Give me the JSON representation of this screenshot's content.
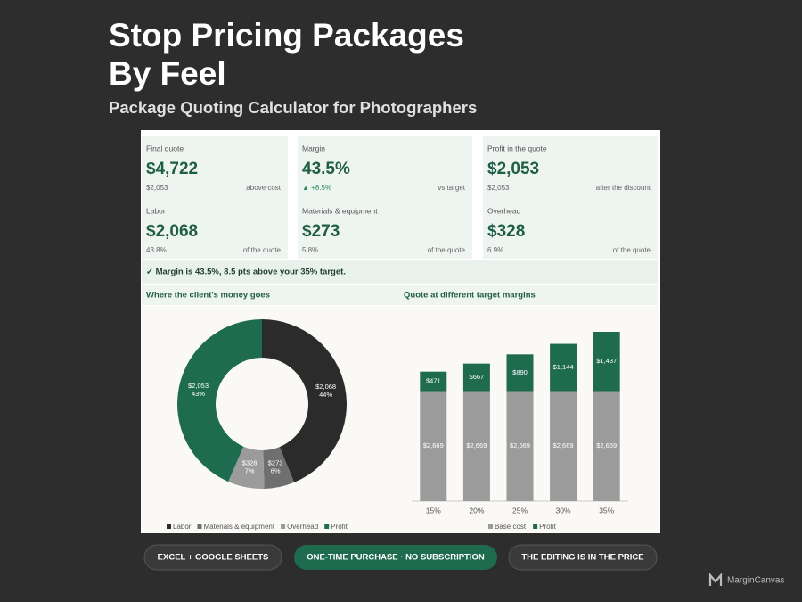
{
  "header": {
    "title_line1": "Stop Pricing Packages",
    "title_line2": "By Feel",
    "subtitle": "Package Quoting Calculator for Photographers"
  },
  "kpis": [
    {
      "label": "Final quote",
      "value": "$4,722",
      "note": "$2,053",
      "caption": "above cost"
    },
    {
      "label": "Labor",
      "value": "$2,068",
      "note": "43.8%",
      "caption": "of the quote"
    },
    {
      "label": "Margin",
      "value": "43.5%",
      "note": "▲ +8.5%",
      "caption": "vs target"
    },
    {
      "label": "Materials & equipment",
      "value": "$273",
      "note": "5.8%",
      "caption": "of the quote"
    },
    {
      "label": "Profit in the quote",
      "value": "$2,053",
      "note": "$2,053",
      "caption": "after the discount"
    },
    {
      "label": "Overhead",
      "value": "$328",
      "note": "6.9%",
      "caption": "of the quote"
    }
  ],
  "banner": "✓ Margin is 43.5%, 8.5 pts above your 35% target.",
  "chart_data": [
    {
      "type": "donut",
      "title": "Where the client's money goes",
      "categories": [
        "Labor",
        "Materials & equipment",
        "Overhead",
        "Profit"
      ],
      "values": [
        2068,
        273,
        328,
        2053
      ],
      "value_labels": [
        "$2,068",
        "$273",
        "$328",
        "$2,053"
      ],
      "percent_labels": [
        "44%",
        "6%",
        "7%",
        "43%"
      ],
      "colors": [
        "#2b2b2b",
        "#6f6f6f",
        "#9b9b9b",
        "#1f6b4f"
      ],
      "legend": "bottom"
    },
    {
      "type": "stacked-bar",
      "title": "Quote at different target margins",
      "categories": [
        "15%",
        "20%",
        "25%",
        "30%",
        "35%"
      ],
      "series": [
        {
          "name": "Base cost",
          "color": "#9b9b9b",
          "values": [
            2669,
            2669,
            2669,
            2669,
            2669
          ],
          "value_labels": [
            "$2,669",
            "$2,669",
            "$2,669",
            "$2,669",
            "$2,669"
          ]
        },
        {
          "name": "Profit",
          "color": "#1f6b4f",
          "values": [
            471,
            667,
            890,
            1144,
            1437
          ],
          "value_labels": [
            "$471",
            "$667",
            "$890",
            "$1,144",
            "$1,437"
          ]
        }
      ],
      "legend": "bottom"
    }
  ],
  "badges": [
    "EXCEL + GOOGLE SHEETS",
    "ONE-TIME PURCHASE · NO SUBSCRIPTION",
    "THE EDITING IS IN THE PRICE"
  ],
  "brand": "MarginCanvas"
}
